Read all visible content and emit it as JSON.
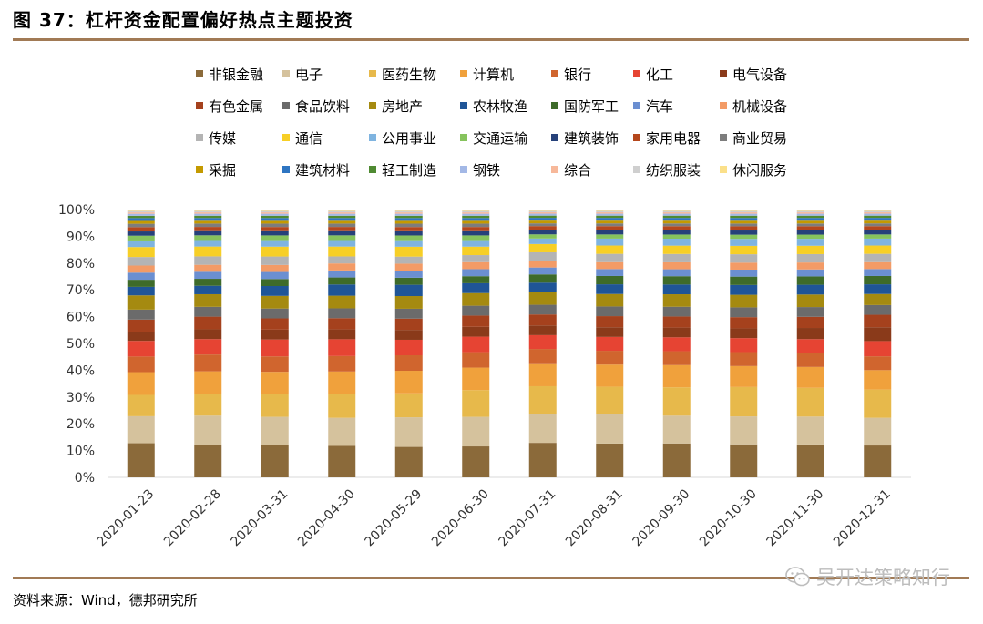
{
  "page": {
    "title": "图 37：杠杆资金配置偏好热点主题投资",
    "source": "资料来源：Wind，德邦研究所",
    "watermark": "吴开达策略知行"
  },
  "chart_data": {
    "type": "bar",
    "stacked": true,
    "title": "",
    "xlabel": "",
    "ylabel": "",
    "ylim": [
      0,
      100
    ],
    "yticks": [
      "0%",
      "10%",
      "20%",
      "30%",
      "40%",
      "50%",
      "60%",
      "70%",
      "80%",
      "90%",
      "100%"
    ],
    "categories": [
      "2020-01-23",
      "2020-02-28",
      "2020-03-31",
      "2020-04-30",
      "2020-05-29",
      "2020-06-30",
      "2020-07-31",
      "2020-08-31",
      "2020-09-30",
      "2020-10-30",
      "2020-11-30",
      "2020-12-31"
    ],
    "legend_position": "top",
    "series": [
      {
        "name": "非银金融",
        "color": "#8b6a3a",
        "values": [
          12,
          11.5,
          11.5,
          11.2,
          10.8,
          11,
          12.5,
          12.2,
          12.2,
          11.8,
          11.8,
          11.5
        ]
      },
      {
        "name": "电子",
        "color": "#d5c29d",
        "values": [
          9.5,
          10.5,
          10,
          10,
          10.5,
          10.5,
          10.5,
          10.5,
          10,
          10,
          10,
          10
        ]
      },
      {
        "name": "医药生物",
        "color": "#e7b94b",
        "values": [
          7.5,
          7.8,
          8,
          8.5,
          8.5,
          9.5,
          10,
          10,
          10.2,
          10.5,
          10.3,
          10.2
        ]
      },
      {
        "name": "计算机",
        "color": "#f0a13c",
        "values": [
          8,
          8,
          8,
          8,
          8,
          8,
          8,
          8,
          8,
          7.5,
          7.5,
          7
        ]
      },
      {
        "name": "银行",
        "color": "#d0652e",
        "values": [
          5.5,
          6,
          5.5,
          5.5,
          5.5,
          5.5,
          5.5,
          5,
          5,
          5,
          5,
          5
        ]
      },
      {
        "name": "化工",
        "color": "#e64433",
        "values": [
          5.5,
          5.5,
          6,
          6,
          5.5,
          5.5,
          5,
          5,
          5,
          5,
          5,
          5.5
        ]
      },
      {
        "name": "电气设备",
        "color": "#8a3a1a",
        "values": [
          3,
          3.5,
          3.5,
          3.5,
          3.5,
          3.5,
          3.5,
          3.5,
          3.5,
          3.5,
          4,
          5
        ]
      },
      {
        "name": "有色金属",
        "color": "#a5411d",
        "values": [
          4.5,
          4.5,
          4,
          4,
          4,
          4,
          4,
          4,
          4,
          4,
          4,
          4.5
        ]
      },
      {
        "name": "食品饮料",
        "color": "#6b6b6b",
        "values": [
          3.5,
          3.5,
          3.5,
          3.5,
          3.5,
          3.5,
          3.5,
          3.5,
          3.5,
          3.5,
          3.5,
          3.5
        ]
      },
      {
        "name": "房地产",
        "color": "#a58a10",
        "values": [
          5,
          4.5,
          4.5,
          4.5,
          4.5,
          4.5,
          4.5,
          4.5,
          4.5,
          4.5,
          4.5,
          4
        ]
      },
      {
        "name": "农林牧渔",
        "color": "#1f5597",
        "values": [
          3,
          3,
          3.5,
          4,
          4,
          3.5,
          3.5,
          3.5,
          3.5,
          3.5,
          3.5,
          3.5
        ]
      },
      {
        "name": "国防军工",
        "color": "#3e6b2a",
        "values": [
          2.5,
          2.5,
          2.5,
          2.5,
          2.5,
          2.5,
          3,
          3,
          3,
          3,
          3,
          3
        ]
      },
      {
        "name": "汽车",
        "color": "#6b8fd1",
        "values": [
          2.5,
          2.5,
          2.5,
          2.5,
          2.5,
          2.5,
          2.5,
          2.5,
          2.5,
          2.5,
          2.5,
          2.5
        ]
      },
      {
        "name": "机械设备",
        "color": "#f39b66",
        "values": [
          2.5,
          2.5,
          2.5,
          2.5,
          2.5,
          2.5,
          2.5,
          2.5,
          2.5,
          2.5,
          2.5,
          2.5
        ]
      },
      {
        "name": "传媒",
        "color": "#b4b4b4",
        "values": [
          3,
          3,
          3,
          2.5,
          2.5,
          2.5,
          3,
          3,
          3,
          3,
          3,
          3
        ]
      },
      {
        "name": "通信",
        "color": "#f7cf26",
        "values": [
          3.5,
          3.5,
          3.5,
          3.5,
          3.5,
          3,
          3,
          3,
          3,
          3,
          3,
          3
        ]
      },
      {
        "name": "公用事业",
        "color": "#7fb4e0",
        "values": [
          2,
          2,
          2,
          2,
          2,
          2,
          2,
          2.5,
          2.5,
          2.5,
          2.5,
          2.5
        ]
      },
      {
        "name": "交通运输",
        "color": "#86c35d",
        "values": [
          2,
          2,
          2,
          2,
          2,
          2,
          1.5,
          1.5,
          1.5,
          1.5,
          1.5,
          1.5
        ]
      },
      {
        "name": "建筑装饰",
        "color": "#26417a",
        "values": [
          1.5,
          1.5,
          1.5,
          1.5,
          1.5,
          1.5,
          1.5,
          1.5,
          1.5,
          1.5,
          1.5,
          1.5
        ]
      },
      {
        "name": "家用电器",
        "color": "#b5471c",
        "values": [
          1.5,
          1.5,
          1.5,
          1.5,
          1.5,
          1.5,
          1.5,
          1.5,
          1.5,
          1.5,
          1.5,
          1.5
        ]
      },
      {
        "name": "商业贸易",
        "color": "#7d7d7d",
        "values": [
          1.2,
          1.2,
          1.2,
          1.2,
          1.2,
          1.2,
          1,
          1,
          1,
          1,
          1,
          1
        ]
      },
      {
        "name": "采掘",
        "color": "#c49a00",
        "values": [
          1,
          1,
          1,
          1,
          1,
          1,
          1,
          1,
          1,
          1,
          1,
          1
        ]
      },
      {
        "name": "建筑材料",
        "color": "#2e75c2",
        "values": [
          1,
          1,
          1,
          1,
          1,
          1,
          1,
          1,
          1,
          1,
          1,
          1
        ]
      },
      {
        "name": "轻工制造",
        "color": "#4f8a32",
        "values": [
          0.8,
          0.8,
          0.8,
          0.8,
          0.8,
          0.8,
          0.8,
          0.8,
          0.8,
          0.8,
          0.8,
          0.8
        ]
      },
      {
        "name": "钢铁",
        "color": "#a3b8e6",
        "values": [
          0.7,
          0.7,
          0.7,
          0.7,
          0.7,
          0.7,
          0.7,
          0.7,
          0.7,
          0.7,
          0.7,
          0.7
        ]
      },
      {
        "name": "综合",
        "color": "#f7b89a",
        "values": [
          0.5,
          0.5,
          0.5,
          0.5,
          0.5,
          0.5,
          0.5,
          0.5,
          0.5,
          0.5,
          0.5,
          0.5
        ]
      },
      {
        "name": "纺织服装",
        "color": "#cfcfcf",
        "values": [
          0.5,
          0.5,
          0.5,
          0.5,
          0.5,
          0.5,
          0.5,
          0.5,
          0.5,
          0.5,
          0.5,
          0.5
        ]
      },
      {
        "name": "休闲服务",
        "color": "#fbe08a",
        "values": [
          0.5,
          0.5,
          0.5,
          0.5,
          0.5,
          0.5,
          0.5,
          0.5,
          0.5,
          0.5,
          0.5,
          0.5
        ]
      }
    ]
  }
}
